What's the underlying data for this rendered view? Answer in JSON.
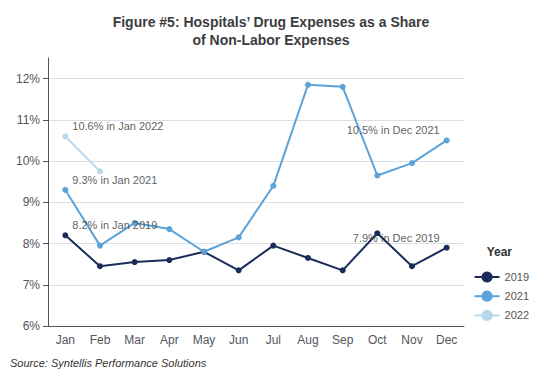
{
  "chart_data": {
    "type": "line",
    "title": "Figure #5: Hospitals’ Drug Expenses as a Share\nof Non-Labor Expenses",
    "source": "Source: Syntellis Performance Solutions",
    "categories": [
      "Jan",
      "Feb",
      "Mar",
      "Apr",
      "May",
      "Jun",
      "Jul",
      "Aug",
      "Sep",
      "Oct",
      "Nov",
      "Dec"
    ],
    "series": [
      {
        "name": "2019",
        "color": "#1a2d5a",
        "values": [
          8.2,
          7.45,
          7.55,
          7.6,
          7.8,
          7.35,
          7.95,
          7.65,
          7.35,
          8.25,
          7.45,
          7.9
        ]
      },
      {
        "name": "2021",
        "color": "#5ba3d9",
        "values": [
          9.3,
          7.95,
          8.5,
          8.35,
          7.8,
          8.15,
          9.4,
          11.85,
          11.8,
          9.65,
          9.95,
          10.5
        ]
      },
      {
        "name": "2022",
        "color": "#b8d8ea",
        "values": [
          10.6,
          9.75,
          null,
          null,
          null,
          null,
          null,
          null,
          null,
          null,
          null,
          null
        ]
      }
    ],
    "ylim": [
      6.0,
      12.5
    ],
    "yticks": [
      {
        "value": 6,
        "label": "6%"
      },
      {
        "value": 7,
        "label": "7%"
      },
      {
        "value": 8,
        "label": "8%"
      },
      {
        "value": 9,
        "label": "9%"
      },
      {
        "value": 10,
        "label": "10%"
      },
      {
        "value": 11,
        "label": "11%"
      },
      {
        "value": 12,
        "label": "12%"
      }
    ],
    "grid": true,
    "marker": "circle",
    "legend": "lower right",
    "legend_title": "Year",
    "annotations": [
      {
        "text": "8.2% in Jan 2019",
        "x": "Jan",
        "y": 8.2
      },
      {
        "text": "9.3% in Jan 2021",
        "x": "Jan",
        "y": 9.3
      },
      {
        "text": "10.6% in Jan 2022",
        "x": "Jan",
        "y": 10.6
      },
      {
        "text": "7.9% in Dec 2019",
        "x": "Dec",
        "y": 7.9
      },
      {
        "text": "10.5% in Dec 2021",
        "x": "Dec",
        "y": 10.5
      }
    ]
  }
}
